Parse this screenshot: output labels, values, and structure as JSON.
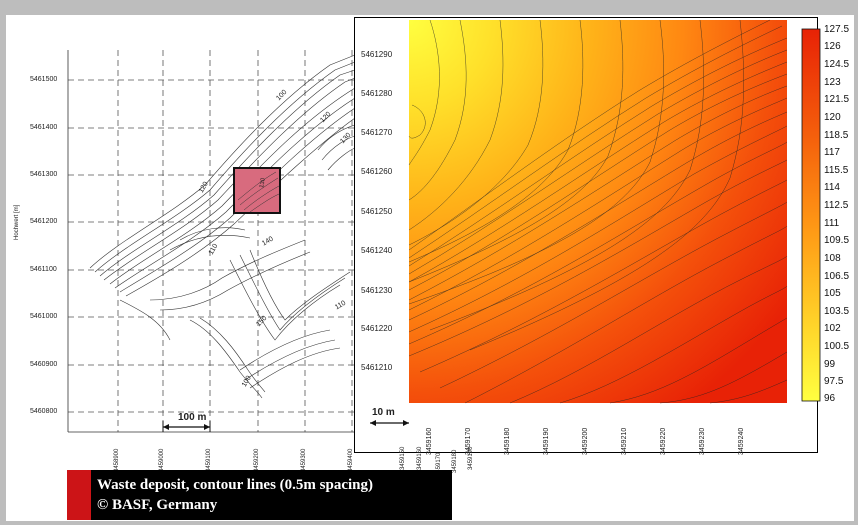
{
  "left_map": {
    "y_axis_label": "Hochwert [m]",
    "y_ticks": [
      "5461500",
      "5461400",
      "5461300",
      "5461200",
      "5461100",
      "5461000",
      "5460900",
      "5460800"
    ],
    "x_ticks": [
      "3458900",
      "3459000",
      "3459100",
      "3459200",
      "3459300",
      "3459400"
    ],
    "contour_labels": [
      "100",
      "120",
      "130",
      "110",
      "140",
      "150",
      "110",
      "100",
      "120",
      "130"
    ],
    "scale_label": "100 m"
  },
  "right_map": {
    "y_ticks": [
      "5461290",
      "5461280",
      "5461270",
      "5461260",
      "5461250",
      "5461240",
      "5461230",
      "5461220",
      "5461210"
    ],
    "x_ticks_main": [
      "3459160",
      "3459170",
      "3459180",
      "3459190",
      "3459200",
      "3459210",
      "3459220",
      "3459230",
      "3459240"
    ],
    "x_ticks_extra": [
      "3459150",
      "3459160",
      "3459170",
      "3459180",
      "3459190"
    ],
    "scale_label": "10 m",
    "colorbar_labels": [
      "127.5",
      "126",
      "124.5",
      "123",
      "121.5",
      "120",
      "118.5",
      "117",
      "115.5",
      "114",
      "112.5",
      "111",
      "109.5",
      "108",
      "106.5",
      "105",
      "103.5",
      "102",
      "100.5",
      "99",
      "97.5",
      "96"
    ],
    "colors": {
      "low": "#ffff40",
      "mid": "#ffb000",
      "high": "#ee2200"
    }
  },
  "caption": {
    "line1": "Waste deposit, contour lines (0.5m spacing)",
    "line2": "© BASF, Germany",
    "accent": "#cc1417"
  }
}
